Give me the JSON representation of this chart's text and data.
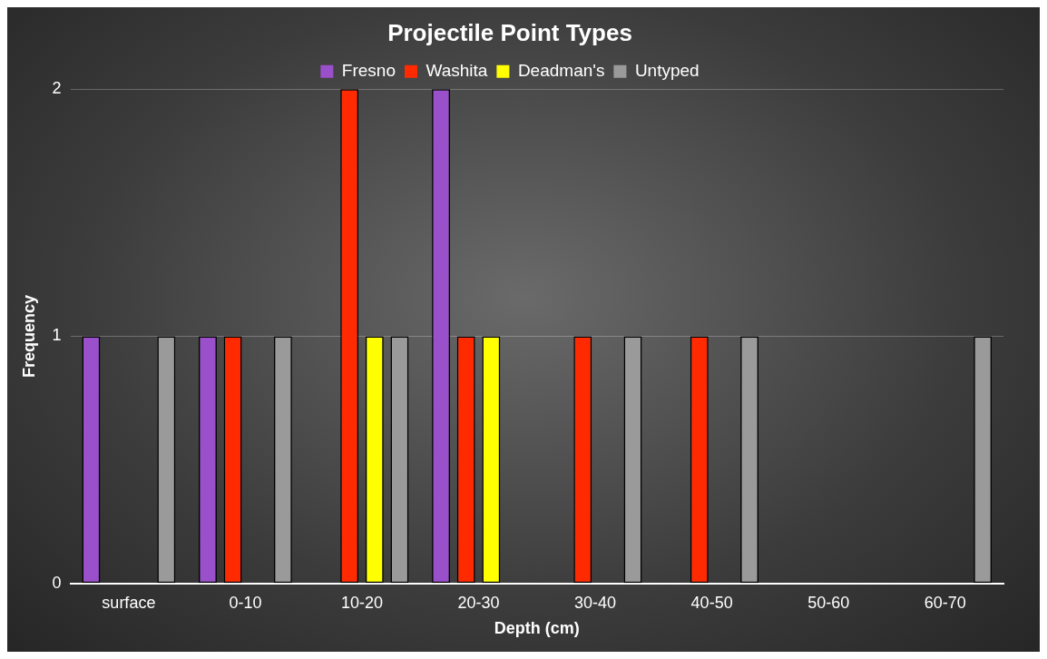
{
  "chart_data": {
    "type": "bar",
    "title": "Projectile Point Types",
    "xlabel": "Depth (cm)",
    "ylabel": "Frequency",
    "categories": [
      "surface",
      "0-10",
      "10-20",
      "20-30",
      "30-40",
      "40-50",
      "50-60",
      "60-70"
    ],
    "series": [
      {
        "name": "Fresno",
        "color": "#9a4fcb",
        "values": [
          1,
          1,
          0,
          2,
          0,
          0,
          0,
          0
        ]
      },
      {
        "name": "Washita",
        "color": "#ff2a00",
        "values": [
          0,
          1,
          2,
          1,
          1,
          1,
          0,
          0
        ]
      },
      {
        "name": "Deadman's",
        "color": "#ffff00",
        "values": [
          0,
          0,
          1,
          1,
          0,
          0,
          0,
          0
        ]
      },
      {
        "name": "Untyped",
        "color": "#9a9a9a",
        "values": [
          1,
          1,
          1,
          0,
          1,
          1,
          0,
          1
        ]
      }
    ],
    "ylim": [
      0,
      2
    ],
    "yticks": [
      0,
      1,
      2
    ],
    "grid": "y",
    "legend": "top"
  }
}
